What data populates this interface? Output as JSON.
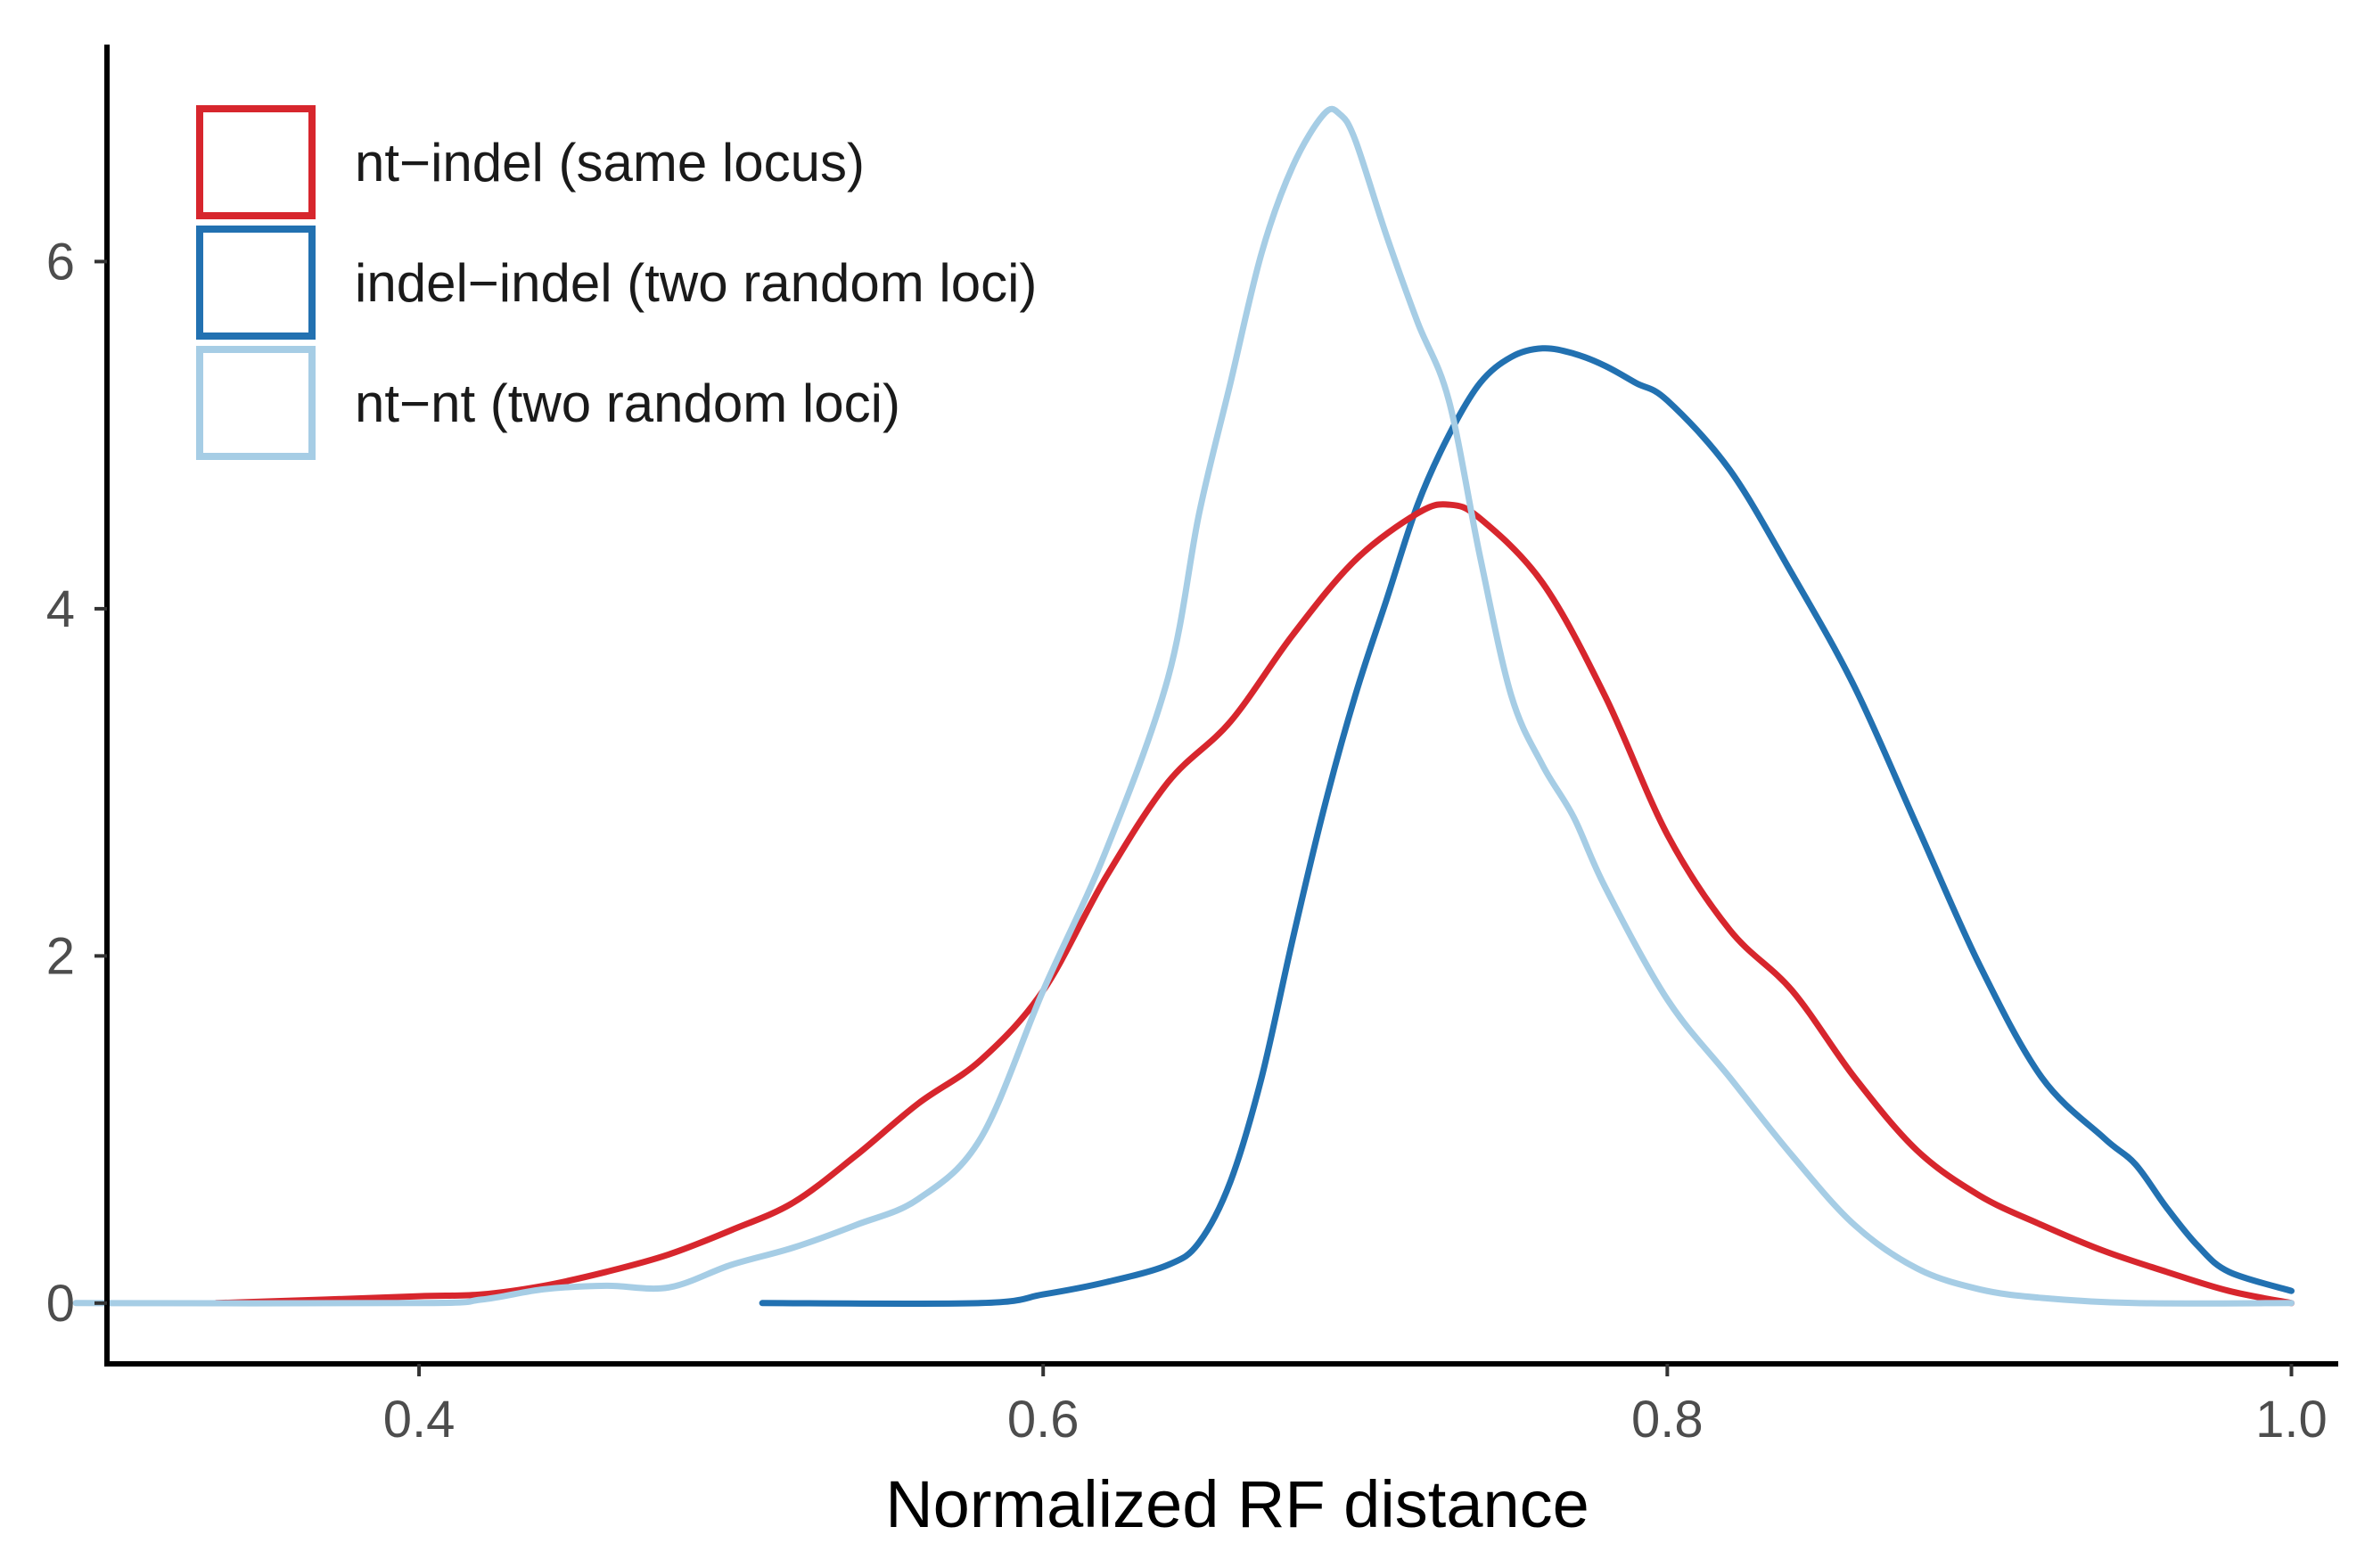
{
  "chart_data": {
    "type": "line",
    "subtype": "density",
    "title": "",
    "xlabel": "Normalized RF distance",
    "ylabel": "",
    "xlim": [
      0.3,
      1.015
    ],
    "ylim": [
      -0.35,
      7.25
    ],
    "xticks": [
      0.4,
      0.6,
      0.8,
      1.0
    ],
    "xtick_labels": [
      "0.4",
      "0.6",
      "0.8",
      "1.0"
    ],
    "yticks": [
      0,
      2,
      4,
      6
    ],
    "ytick_labels": [
      "0",
      "2",
      "4",
      "6"
    ],
    "grid": false,
    "legend_position": "top-left",
    "series": [
      {
        "name": "nt−indel (same locus)",
        "color": "#d7262d",
        "x": [
          0.335,
          0.37,
          0.4,
          0.42,
          0.44,
          0.46,
          0.48,
          0.5,
          0.52,
          0.54,
          0.56,
          0.58,
          0.6,
          0.62,
          0.64,
          0.66,
          0.68,
          0.7,
          0.72,
          0.73,
          0.74,
          0.76,
          0.78,
          0.8,
          0.82,
          0.84,
          0.86,
          0.88,
          0.9,
          0.92,
          0.94,
          0.96,
          0.98,
          1.0
        ],
        "y": [
          0.0,
          0.02,
          0.04,
          0.05,
          0.1,
          0.18,
          0.28,
          0.42,
          0.58,
          0.85,
          1.15,
          1.4,
          1.8,
          2.45,
          3.0,
          3.35,
          3.85,
          4.28,
          4.55,
          4.6,
          4.52,
          4.15,
          3.5,
          2.7,
          2.15,
          1.8,
          1.3,
          0.88,
          0.62,
          0.45,
          0.3,
          0.18,
          0.07,
          0.0
        ]
      },
      {
        "name": "indel−indel (two random loci)",
        "color": "#2271b1",
        "x": [
          0.51,
          0.58,
          0.6,
          0.62,
          0.64,
          0.65,
          0.66,
          0.67,
          0.68,
          0.69,
          0.7,
          0.71,
          0.72,
          0.73,
          0.74,
          0.75,
          0.76,
          0.77,
          0.78,
          0.79,
          0.8,
          0.82,
          0.84,
          0.86,
          0.88,
          0.9,
          0.92,
          0.94,
          0.95,
          0.96,
          0.97,
          0.98,
          1.0
        ],
        "y": [
          0.0,
          0.0,
          0.05,
          0.12,
          0.22,
          0.35,
          0.7,
          1.3,
          2.1,
          2.85,
          3.5,
          4.05,
          4.6,
          5.0,
          5.3,
          5.45,
          5.5,
          5.47,
          5.4,
          5.3,
          5.2,
          4.8,
          4.2,
          3.55,
          2.75,
          1.95,
          1.3,
          0.95,
          0.8,
          0.55,
          0.33,
          0.18,
          0.07
        ]
      },
      {
        "name": "nt−nt (two random loci)",
        "color": "#a6cde5",
        "x": [
          0.29,
          0.4,
          0.42,
          0.44,
          0.46,
          0.48,
          0.5,
          0.52,
          0.54,
          0.56,
          0.58,
          0.6,
          0.62,
          0.64,
          0.65,
          0.66,
          0.67,
          0.68,
          0.69,
          0.695,
          0.7,
          0.71,
          0.72,
          0.73,
          0.74,
          0.75,
          0.76,
          0.77,
          0.78,
          0.8,
          0.82,
          0.84,
          0.86,
          0.88,
          0.9,
          0.92,
          0.95,
          1.0
        ],
        "y": [
          0.0,
          0.0,
          0.02,
          0.08,
          0.1,
          0.09,
          0.22,
          0.32,
          0.45,
          0.6,
          0.95,
          1.8,
          2.6,
          3.6,
          4.55,
          5.3,
          6.05,
          6.55,
          6.85,
          6.85,
          6.7,
          6.15,
          5.65,
          5.2,
          4.3,
          3.5,
          3.1,
          2.8,
          2.4,
          1.75,
          1.3,
          0.85,
          0.45,
          0.2,
          0.08,
          0.03,
          0.0,
          0.0
        ]
      }
    ]
  }
}
